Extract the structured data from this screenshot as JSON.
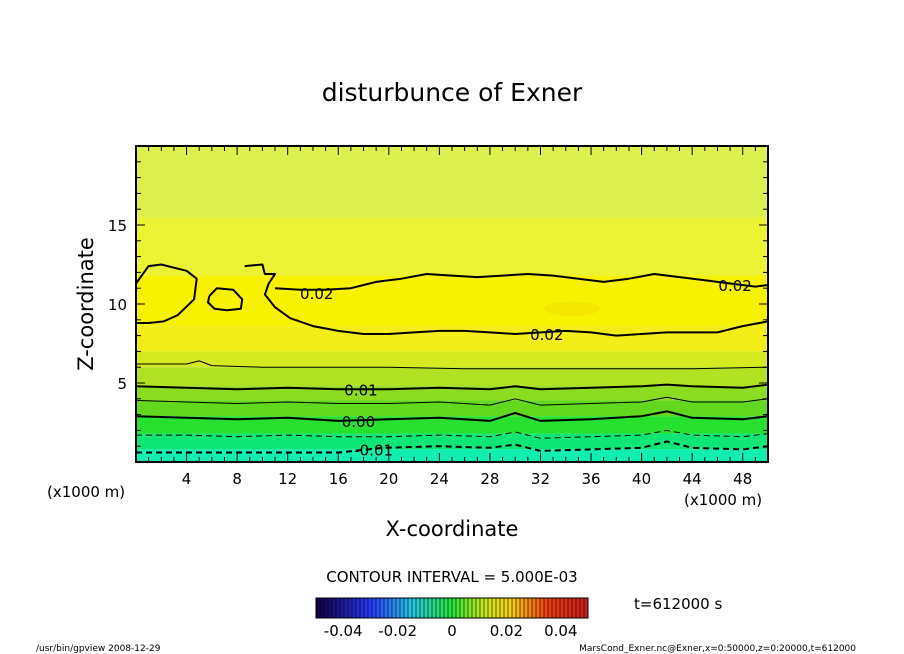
{
  "chart_data": {
    "type": "heatmap",
    "title": "disturbunce of Exner",
    "xlabel": "X-coordinate",
    "ylabel": "Z-coordinate",
    "x_unit_left": "(x1000 m)",
    "x_unit_right": "(x1000 m)",
    "xlim": [
      0,
      50
    ],
    "ylim": [
      0,
      20
    ],
    "xticks": [
      4,
      8,
      12,
      16,
      20,
      24,
      28,
      32,
      36,
      40,
      44,
      48
    ],
    "yticks": [
      5,
      10,
      15
    ],
    "contour_interval_text": "CONTOUR INTERVAL = 5.000E-03",
    "time_text": "t=612000 s",
    "colorbar": {
      "range": [
        -0.05,
        0.05
      ],
      "labels": [
        "-0.04",
        "-0.02",
        "0",
        "0.02",
        "0.04"
      ],
      "label_values": [
        -0.04,
        -0.02,
        0,
        0.02,
        0.04
      ]
    },
    "contour_labels": [
      {
        "text": "0.02",
        "x": 14.3,
        "z": 10.7
      },
      {
        "text": "0.02",
        "x": 47.4,
        "z": 11.2
      },
      {
        "text": "0.02",
        "x": 32.5,
        "z": 8.1
      },
      {
        "text": "0.01",
        "x": 17.8,
        "z": 4.6
      },
      {
        "text": "0.00",
        "x": 17.6,
        "z": 2.6
      },
      {
        "text": "-0.01",
        "x": 18.8,
        "z": 0.8
      }
    ],
    "contours": [
      {
        "level": 0.02,
        "style": "solid-bold",
        "points": [
          [
            0,
            11.3
          ],
          [
            1,
            12.4
          ],
          [
            2,
            12.5
          ],
          [
            3,
            12.3
          ],
          [
            4,
            12.1
          ],
          [
            4.8,
            11.6
          ],
          [
            4.6,
            10.3
          ],
          [
            3.3,
            9.3
          ],
          [
            2.2,
            8.9
          ],
          [
            1,
            8.8
          ],
          [
            0,
            8.8
          ]
        ]
      },
      {
        "level": 0.02,
        "style": "solid-bold",
        "points": [
          [
            8.6,
            12.4
          ],
          [
            10,
            12.5
          ],
          [
            10.2,
            11.9
          ],
          [
            11,
            11.9
          ],
          [
            10.5,
            11.3
          ],
          [
            10.2,
            10.6
          ],
          [
            11,
            9.8
          ],
          [
            12.2,
            9.1
          ],
          [
            14,
            8.6
          ],
          [
            16,
            8.3
          ],
          [
            18,
            8.1
          ],
          [
            20,
            8.1
          ],
          [
            22,
            8.2
          ],
          [
            24,
            8.3
          ],
          [
            26,
            8.3
          ],
          [
            28,
            8.2
          ],
          [
            30,
            8.1
          ],
          [
            32,
            8.2
          ],
          [
            34,
            8.3
          ],
          [
            36,
            8.2
          ],
          [
            38,
            8.0
          ],
          [
            40,
            8.1
          ],
          [
            42,
            8.2
          ],
          [
            44,
            8.2
          ],
          [
            46,
            8.2
          ],
          [
            48,
            8.6
          ],
          [
            50,
            8.9
          ]
        ]
      },
      {
        "level": 0.02,
        "style": "solid-bold",
        "points": [
          [
            11,
            11
          ],
          [
            13,
            10.9
          ],
          [
            15,
            10.9
          ],
          [
            17,
            11.0
          ],
          [
            19,
            11.4
          ],
          [
            21,
            11.6
          ],
          [
            23,
            11.9
          ],
          [
            25,
            11.8
          ],
          [
            27,
            11.7
          ],
          [
            29,
            11.8
          ],
          [
            31,
            11.9
          ],
          [
            33,
            11.8
          ],
          [
            35,
            11.6
          ],
          [
            37,
            11.4
          ],
          [
            39,
            11.6
          ],
          [
            41,
            11.9
          ],
          [
            43,
            11.7
          ],
          [
            45,
            11.5
          ],
          [
            47,
            11.3
          ],
          [
            49,
            11.1
          ],
          [
            50,
            11.2
          ]
        ]
      },
      {
        "level": 0.02,
        "style": "solid-bold",
        "points": [
          [
            5.8,
            10.5
          ],
          [
            6.4,
            11.0
          ],
          [
            7.7,
            10.9
          ],
          [
            8.4,
            10.3
          ],
          [
            8.3,
            9.7
          ],
          [
            7.2,
            9.6
          ],
          [
            6.2,
            9.7
          ],
          [
            5.7,
            10.1
          ],
          [
            5.8,
            10.5
          ]
        ]
      },
      {
        "level": 0.015,
        "style": "solid-thin",
        "points": [
          [
            0,
            6.2
          ],
          [
            4,
            6.2
          ],
          [
            5,
            6.4
          ],
          [
            6,
            6.1
          ],
          [
            10,
            6.0
          ],
          [
            16,
            6.0
          ],
          [
            20,
            6.0
          ],
          [
            26,
            5.9
          ],
          [
            32,
            5.9
          ],
          [
            38,
            5.9
          ],
          [
            44,
            5.9
          ],
          [
            50,
            6.0
          ]
        ]
      },
      {
        "level": 0.01,
        "style": "solid-bold",
        "points": [
          [
            0,
            4.8
          ],
          [
            4,
            4.7
          ],
          [
            8,
            4.6
          ],
          [
            12,
            4.7
          ],
          [
            16,
            4.6
          ],
          [
            20,
            4.6
          ],
          [
            24,
            4.7
          ],
          [
            28,
            4.6
          ],
          [
            30,
            4.8
          ],
          [
            32,
            4.6
          ],
          [
            36,
            4.7
          ],
          [
            40,
            4.8
          ],
          [
            42,
            4.9
          ],
          [
            44,
            4.8
          ],
          [
            48,
            4.7
          ],
          [
            50,
            4.9
          ]
        ]
      },
      {
        "level": 0.005,
        "style": "solid-thin",
        "points": [
          [
            0,
            3.9
          ],
          [
            4,
            3.8
          ],
          [
            8,
            3.7
          ],
          [
            12,
            3.8
          ],
          [
            16,
            3.7
          ],
          [
            20,
            3.7
          ],
          [
            24,
            3.8
          ],
          [
            28,
            3.6
          ],
          [
            30,
            4.0
          ],
          [
            32,
            3.6
          ],
          [
            36,
            3.7
          ],
          [
            40,
            3.8
          ],
          [
            42,
            4.1
          ],
          [
            44,
            3.8
          ],
          [
            48,
            3.8
          ],
          [
            50,
            4.0
          ]
        ]
      },
      {
        "level": 0.0,
        "style": "solid-bold",
        "points": [
          [
            0,
            2.9
          ],
          [
            4,
            2.8
          ],
          [
            8,
            2.7
          ],
          [
            12,
            2.8
          ],
          [
            16,
            2.6
          ],
          [
            20,
            2.7
          ],
          [
            24,
            2.8
          ],
          [
            28,
            2.6
          ],
          [
            30,
            3.1
          ],
          [
            32,
            2.6
          ],
          [
            36,
            2.7
          ],
          [
            40,
            2.9
          ],
          [
            42,
            3.2
          ],
          [
            44,
            2.8
          ],
          [
            48,
            2.7
          ],
          [
            50,
            2.9
          ]
        ]
      },
      {
        "level": -0.005,
        "style": "dashed-thin",
        "points": [
          [
            0,
            1.7
          ],
          [
            4,
            1.7
          ],
          [
            8,
            1.6
          ],
          [
            12,
            1.7
          ],
          [
            16,
            1.6
          ],
          [
            20,
            1.6
          ],
          [
            24,
            1.7
          ],
          [
            28,
            1.6
          ],
          [
            30,
            1.9
          ],
          [
            32,
            1.5
          ],
          [
            36,
            1.6
          ],
          [
            40,
            1.7
          ],
          [
            42,
            2.0
          ],
          [
            44,
            1.7
          ],
          [
            48,
            1.6
          ],
          [
            50,
            1.8
          ]
        ]
      },
      {
        "level": -0.01,
        "style": "dashed-bold",
        "points": [
          [
            0,
            0.6
          ],
          [
            6,
            0.6
          ],
          [
            12,
            0.6
          ],
          [
            16,
            0.6
          ],
          [
            19.6,
            0.9
          ],
          [
            24,
            1.0
          ],
          [
            28,
            0.9
          ],
          [
            30,
            1.1
          ],
          [
            32,
            0.7
          ],
          [
            36,
            0.8
          ],
          [
            40,
            0.9
          ],
          [
            42,
            1.3
          ],
          [
            44,
            0.9
          ],
          [
            48,
            0.8
          ],
          [
            50,
            1.0
          ]
        ]
      }
    ],
    "fill_bands": [
      {
        "zmin": 8.6,
        "zmax": 11.8,
        "color": "#f6f200"
      },
      {
        "zmin": 7.0,
        "zmax": 8.6,
        "color": "#f4ee18"
      },
      {
        "zmin": 6.0,
        "zmax": 7.0,
        "color": "#d6ea22"
      },
      {
        "zmin": 4.8,
        "zmax": 6.0,
        "color": "#b2e224"
      },
      {
        "zmin": 3.9,
        "zmax": 4.8,
        "color": "#8cdc22"
      },
      {
        "zmin": 2.9,
        "zmax": 3.9,
        "color": "#62d81e"
      },
      {
        "zmin": 1.8,
        "zmax": 2.9,
        "color": "#28e02e"
      },
      {
        "zmin": 0.8,
        "zmax": 1.8,
        "color": "#0ee676"
      },
      {
        "zmin": 0.0,
        "zmax": 0.8,
        "color": "#10eeb0"
      },
      {
        "zmin": 15.5,
        "zmax": 20.0,
        "color": "#dcf050"
      },
      {
        "zmin": 11.8,
        "zmax": 15.5,
        "color": "#ecf234"
      }
    ]
  },
  "footer": {
    "left": "/usr/bin/gpview   2008-12-29",
    "right": "MarsCond_Exner.nc@Exner,x=0:50000,z=0:20000,t=612000"
  }
}
